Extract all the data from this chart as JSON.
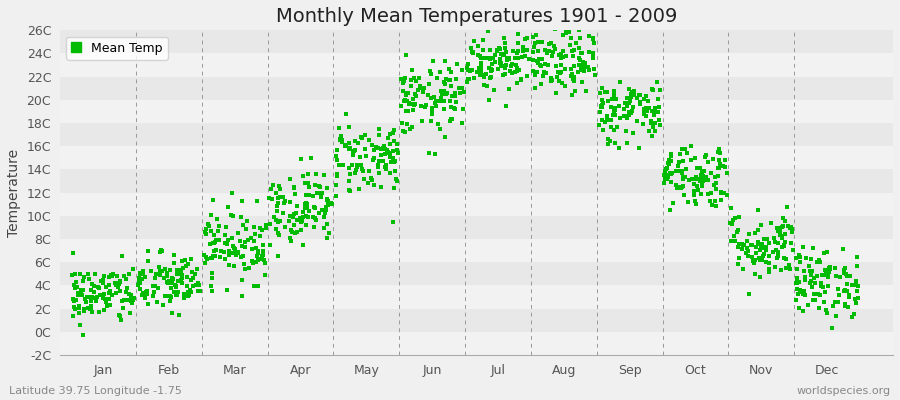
{
  "title": "Monthly Mean Temperatures 1901 - 2009",
  "ylabel": "Temperature",
  "dot_color": "#00bb00",
  "background_color": "#f0f0f0",
  "legend_label": "Mean Temp",
  "footer_left": "Latitude 39.75 Longitude -1.75",
  "footer_right": "worldspecies.org",
  "ylim": [
    -2,
    26
  ],
  "yticks": [
    -2,
    0,
    2,
    4,
    6,
    8,
    10,
    12,
    14,
    16,
    18,
    20,
    22,
    24,
    26
  ],
  "ytick_labels": [
    "-2C",
    "0C",
    "2C",
    "4C",
    "6C",
    "8C",
    "10C",
    "12C",
    "14C",
    "16C",
    "18C",
    "20C",
    "22C",
    "24C",
    "26C"
  ],
  "months": [
    "Jan",
    "Feb",
    "Mar",
    "Apr",
    "May",
    "Jun",
    "Jul",
    "Aug",
    "Sep",
    "Oct",
    "Nov",
    "Dec"
  ],
  "month_means": [
    3.2,
    4.2,
    7.5,
    10.8,
    15.0,
    20.0,
    23.5,
    23.2,
    19.0,
    13.5,
    7.5,
    4.2
  ],
  "month_stds": [
    1.3,
    1.3,
    1.6,
    1.6,
    1.6,
    1.6,
    1.4,
    1.4,
    1.4,
    1.4,
    1.5,
    1.5
  ],
  "n_years": 109,
  "marker_size": 3.5,
  "band_color_1": "#e8e8e8",
  "band_color_2": "#f2f2f2",
  "vline_color": "#999999",
  "tick_label_color": "#555555",
  "title_fontsize": 14,
  "axis_label_fontsize": 9,
  "footer_fontsize": 8
}
